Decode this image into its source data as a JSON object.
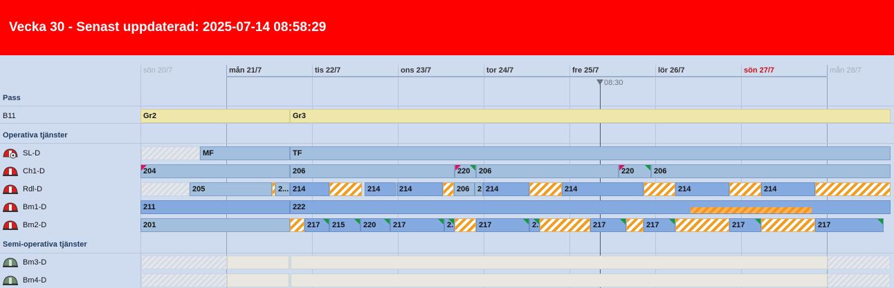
{
  "header": {
    "title": "Vecka 30 - Senast uppdaterad: 2025-07-14 08:58:29",
    "bg_color": "#ff0000"
  },
  "days": [
    {
      "label": "sön 20/7",
      "style": "muted"
    },
    {
      "label": "mån 21/7",
      "style": "normal"
    },
    {
      "label": "tis 22/7",
      "style": "normal"
    },
    {
      "label": "ons 23/7",
      "style": "normal"
    },
    {
      "label": "tor 24/7",
      "style": "normal"
    },
    {
      "label": "fre 25/7",
      "style": "normal"
    },
    {
      "label": "lör 26/7",
      "style": "normal"
    },
    {
      "label": "sön 27/7",
      "style": "sunday"
    },
    {
      "label": "mån 28/7",
      "style": "muted"
    }
  ],
  "now_label": "08:30",
  "sections": {
    "pass": "Pass",
    "operativa": "Operativa tjänster",
    "semi": "Semi-operativa tjänster"
  },
  "rows": {
    "b11": {
      "label": "B11",
      "icon": "none"
    },
    "sld": {
      "label": "SL-D",
      "icon": "helmet-red-wheel-icon"
    },
    "ch1d": {
      "label": "Ch1-D",
      "icon": "helmet-red-icon"
    },
    "rdld": {
      "label": "Rdl-D",
      "icon": "helmet-red-icon"
    },
    "bm1d": {
      "label": "Bm1-D",
      "icon": "helmet-red-icon"
    },
    "bm2d": {
      "label": "Bm2-D",
      "icon": "helmet-red-icon"
    },
    "bm3d": {
      "label": "Bm3-D",
      "icon": "helmet-green-icon"
    },
    "bm4d": {
      "label": "Bm4-D",
      "icon": "helmet-green-icon"
    }
  },
  "bars": {
    "b11": [
      "Gr2",
      "Gr3"
    ],
    "sld": [
      "",
      "MF",
      "TF"
    ],
    "ch1d": [
      "204",
      "206",
      "220",
      "206",
      "220",
      "206"
    ],
    "rdld": [
      "",
      "205",
      "",
      "2...",
      "214",
      "",
      "214",
      "214",
      "",
      "206",
      "2",
      "214",
      "",
      "214",
      "",
      "214",
      "",
      "214",
      ""
    ],
    "bm1d": [
      "211",
      "222",
      ""
    ],
    "bm2d": [
      "201",
      "",
      "217",
      "215",
      "220",
      "217",
      "2...",
      "",
      "217",
      "2...",
      "",
      "217",
      "",
      "217",
      "",
      "217",
      "",
      "217"
    ],
    "bm3d": [
      "",
      "",
      "",
      ""
    ],
    "bm4d": [
      "",
      "",
      "",
      ""
    ]
  },
  "colors": {
    "pass_bar": "#efe6ac",
    "service_bar_light": "#a2bfde",
    "service_bar": "#85aadf",
    "stripe_orange": "#f39c22",
    "corner_green": "#139a3b",
    "corner_red": "#e0115f",
    "sunday_text": "#cc1111"
  }
}
